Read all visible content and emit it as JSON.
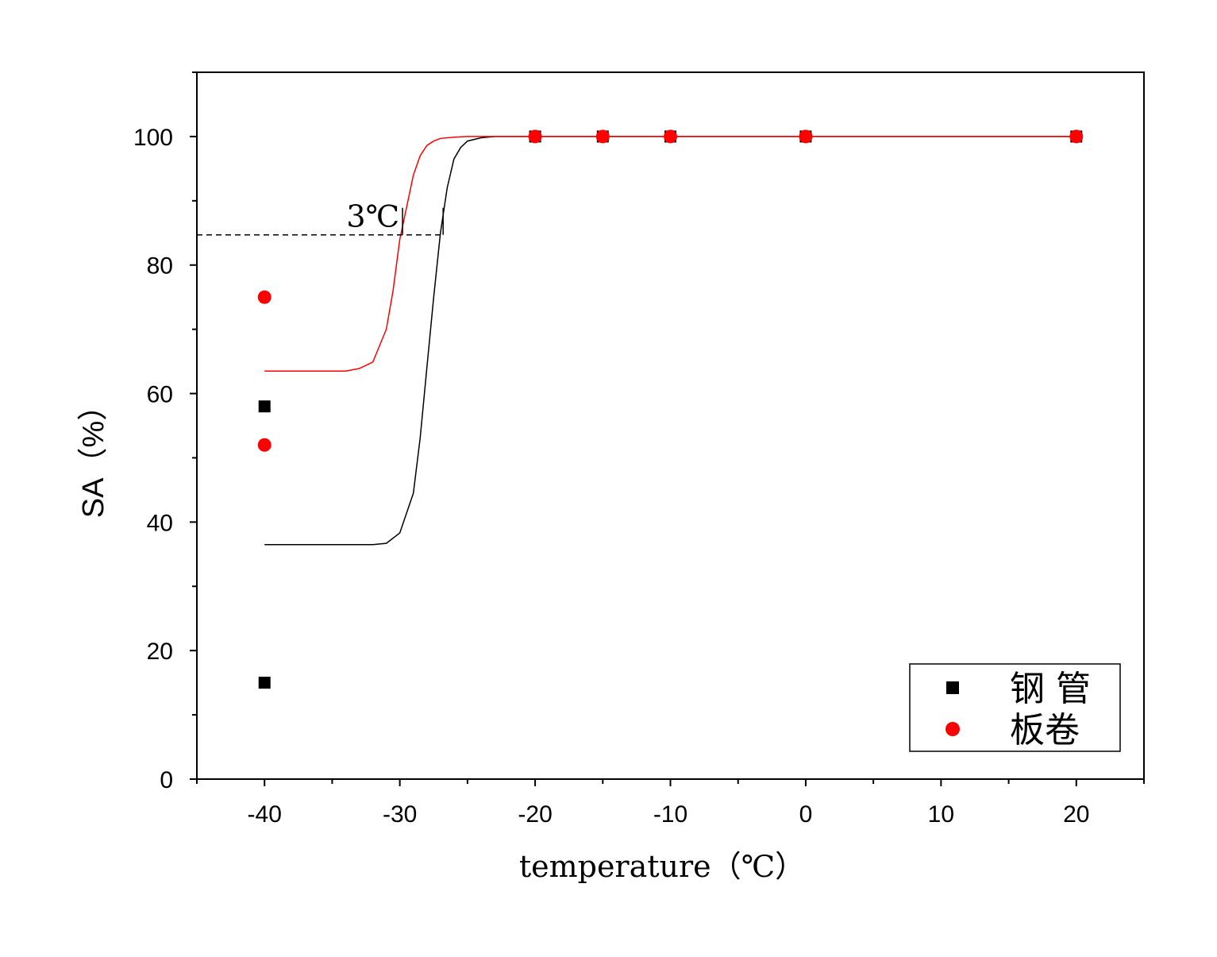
{
  "chart_data": {
    "type": "scatter",
    "xlabel": "temperature（℃）",
    "ylabel": "SA（%）",
    "xlim": [
      -45,
      25
    ],
    "ylim": [
      0,
      110
    ],
    "x_ticks": [
      -40,
      -30,
      -20,
      -10,
      0,
      10,
      20
    ],
    "y_ticks": [
      0,
      20,
      40,
      60,
      80,
      100
    ],
    "x_tick_labels": [
      "-40",
      "-30",
      "-20",
      "-10",
      "0",
      "10",
      "20"
    ],
    "y_tick_labels": [
      "0",
      "20",
      "40",
      "60",
      "80",
      "100"
    ],
    "grid": false,
    "legend_position": "bottom-right",
    "series": [
      {
        "name": "钢 管",
        "color": "#000000",
        "marker": "square",
        "x": [
          -40,
          -40,
          -20,
          -15,
          -10,
          0,
          20
        ],
        "y": [
          15,
          58,
          100,
          100,
          100,
          100,
          100
        ],
        "fit_curve": {
          "x": [
            -40,
            -38,
            -36,
            -34,
            -32,
            -31,
            -30,
            -29,
            -28.5,
            -28,
            -27.5,
            -27,
            -26.5,
            -26,
            -25.5,
            -25,
            -24,
            -23,
            -22,
            -20,
            -15,
            -10,
            0,
            20
          ],
          "y": [
            36.5,
            36.5,
            36.5,
            36.5,
            36.5,
            36.7,
            38.3,
            44.5,
            53,
            64,
            75,
            85,
            92,
            96.5,
            98.3,
            99.3,
            99.8,
            100,
            100,
            100,
            100,
            100,
            100,
            100
          ]
        }
      },
      {
        "name": "板卷",
        "color": "#ff0000",
        "marker": "circle",
        "x": [
          -40,
          -40,
          -20,
          -15,
          -10,
          0,
          20
        ],
        "y": [
          52,
          75,
          100,
          100,
          100,
          100,
          100
        ],
        "fit_curve": {
          "x": [
            -40,
            -38,
            -36,
            -34,
            -33,
            -32,
            -31,
            -30.5,
            -30,
            -29.5,
            -29,
            -28.5,
            -28,
            -27.5,
            -27,
            -26,
            -25,
            -24,
            -22,
            -20,
            -15,
            -10,
            0,
            20
          ],
          "y": [
            63.5,
            63.5,
            63.5,
            63.5,
            63.9,
            64.9,
            70,
            76,
            84,
            89,
            94,
            97,
            98.6,
            99.3,
            99.7,
            99.9,
            100,
            100,
            100,
            100,
            100,
            100,
            100,
            100
          ]
        }
      }
    ],
    "annotations": [
      {
        "text": "3℃",
        "reference_line_y": 84.7,
        "reference_line_x_end": -26.8,
        "markers_x": [
          -29.8,
          -26.8
        ]
      }
    ]
  }
}
